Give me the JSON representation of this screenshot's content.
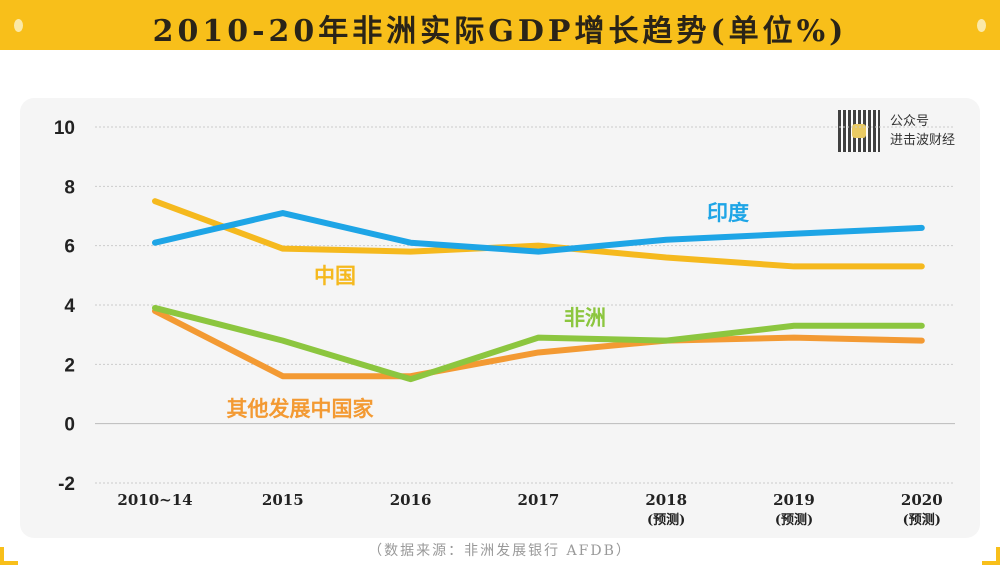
{
  "title": "2010-20年非洲实际GDP增长趋势(单位%)",
  "source": "（数据来源：非洲发展银行  AFDB）",
  "watermark": {
    "line1": "公众号",
    "line2": "进击波财经"
  },
  "chart_data": {
    "type": "line",
    "title": "2010-20年非洲实际GDP增长趋势(单位%)",
    "categories": [
      "2010~14",
      "2015",
      "2016",
      "2017",
      "2018",
      "2019",
      "2020"
    ],
    "category_notes": [
      "",
      "",
      "",
      "",
      "(预测)",
      "(预测)",
      "(预测)"
    ],
    "ylim": [
      -2,
      10
    ],
    "yticks": [
      -2,
      0,
      2,
      4,
      6,
      8,
      10
    ],
    "grid": true,
    "series": [
      {
        "name": "印度",
        "color": "#1ea5e6",
        "values": [
          6.1,
          7.1,
          6.1,
          5.8,
          6.2,
          6.4,
          6.6
        ]
      },
      {
        "name": "中国",
        "color": "#f5b91e",
        "values": [
          7.5,
          5.9,
          5.8,
          6.0,
          5.6,
          5.3,
          5.3
        ]
      },
      {
        "name": "非洲",
        "color": "#8cc63f",
        "values": [
          3.9,
          2.8,
          1.5,
          2.9,
          2.8,
          3.3,
          3.3
        ]
      },
      {
        "name": "其他发展中国家",
        "color": "#f39a33",
        "values": [
          3.8,
          1.6,
          1.6,
          2.4,
          2.8,
          2.9,
          2.8
        ]
      }
    ]
  }
}
